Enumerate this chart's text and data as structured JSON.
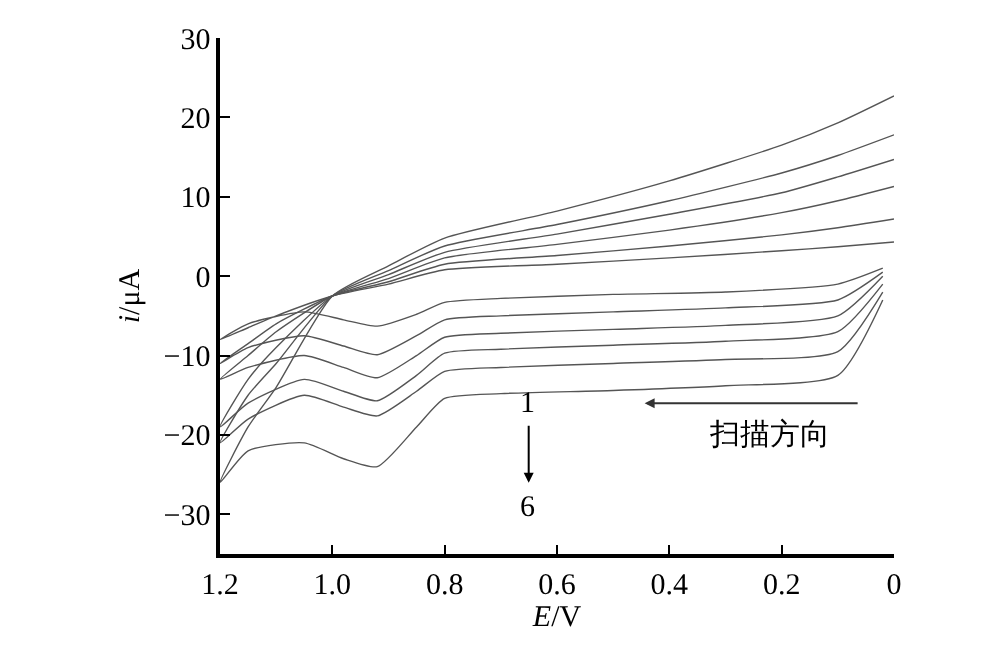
{
  "chart_data": {
    "type": "line",
    "xlabel": "E/V",
    "ylabel": "i/μA",
    "xlim": [
      1.2,
      0
    ],
    "xticks": [
      {
        "value": 1.2,
        "label": "1.2"
      },
      {
        "value": 1.0,
        "label": "1.0"
      },
      {
        "value": 0.8,
        "label": "0.8"
      },
      {
        "value": 0.6,
        "label": "0.6"
      },
      {
        "value": 0.4,
        "label": "0.4"
      },
      {
        "value": 0.2,
        "label": "0.2"
      },
      0
    ],
    "ylim": [
      -35,
      30
    ],
    "yticks": [
      -30,
      -20,
      -10,
      0,
      10,
      20,
      30
    ],
    "marker": "none",
    "line_style": "solid",
    "x": [
      0.02,
      0.1,
      0.3,
      0.5,
      0.7,
      0.8,
      0.85,
      0.92,
      0.98,
      1.05,
      1.15,
      1.2,
      1.15,
      1.1,
      1.0,
      0.9,
      0.8,
      0.6,
      0.4,
      0.2,
      0.1,
      0
    ],
    "series": [
      {
        "color": "#555555",
        "values": [
          1,
          -1,
          -2,
          -2.3,
          -2.8,
          -3.3,
          -4.8,
          -6.3,
          -5.5,
          -4.5,
          -6,
          -8,
          -6.5,
          -5,
          -2.5,
          -1,
          0.8,
          1.5,
          2.3,
          3.2,
          3.7,
          4.3
        ]
      },
      {
        "color": "#555555",
        "values": [
          0.5,
          -3,
          -4,
          -4.5,
          -5,
          -5.5,
          -7.5,
          -9.9,
          -8.8,
          -7.5,
          -9,
          -11,
          -8.5,
          -6,
          -2.5,
          -0.7,
          1.5,
          2.6,
          3.8,
          5.2,
          6.1,
          7.2
        ]
      },
      {
        "color": "#555555",
        "values": [
          0,
          -5,
          -6.2,
          -6.7,
          -7.2,
          -7.7,
          -10,
          -12.8,
          -11.5,
          -10,
          -11.5,
          -13,
          -10,
          -7,
          -2.5,
          -0.3,
          2.3,
          4,
          5.8,
          8,
          9.5,
          11.3
        ]
      },
      {
        "color": "#555555",
        "values": [
          -1,
          -7,
          -8.2,
          -8.7,
          -9.2,
          -9.7,
          -12.5,
          -15.7,
          -14.5,
          -13,
          -16,
          -19,
          -13,
          -9,
          -2.5,
          0.2,
          3,
          5.3,
          7.8,
          10.5,
          12.5,
          14.7
        ]
      },
      {
        "color": "#555555",
        "values": [
          -2,
          -9.5,
          -10.5,
          -11,
          -11.5,
          -12,
          -14.5,
          -17.6,
          -16.5,
          -15,
          -18,
          -21,
          -15,
          -11,
          -2.5,
          0.7,
          3.8,
          6.5,
          9.5,
          13,
          15.2,
          17.8
        ]
      },
      {
        "color": "#555555",
        "values": [
          -3,
          -12.5,
          -13.8,
          -14.4,
          -14.8,
          -15.4,
          -19,
          -24,
          -23,
          -21,
          -22,
          -26,
          -19,
          -14,
          -2.5,
          1.3,
          4.8,
          8.2,
          12,
          16.5,
          19.3,
          22.7
        ]
      }
    ],
    "annotations": [
      "1",
      "6",
      "扫描方向"
    ]
  }
}
